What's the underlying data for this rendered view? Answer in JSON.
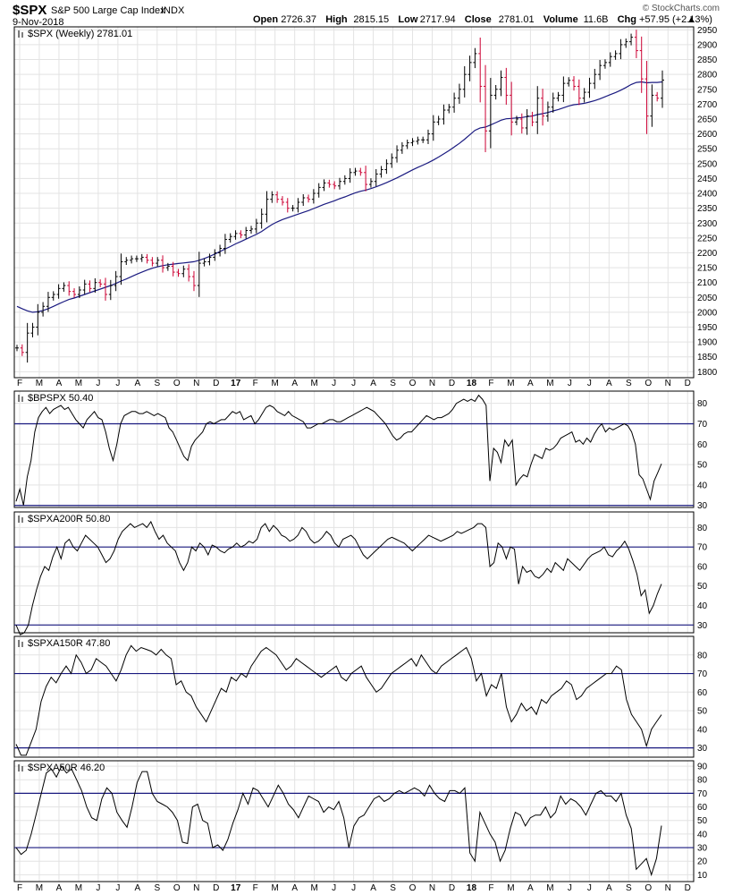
{
  "header": {
    "symbol": "$SPX",
    "name": "S&P 500 Large Cap Index",
    "exchange": "INDX",
    "date": "9-Nov-2018",
    "brand": "© StockCharts.com",
    "quote": [
      {
        "label": "Open",
        "value": "2726.37"
      },
      {
        "label": "High",
        "value": "2815.15"
      },
      {
        "label": "Low",
        "value": "2717.94"
      },
      {
        "label": "Close",
        "value": "2781.01"
      },
      {
        "label": "Volume",
        "value": "11.6B"
      },
      {
        "label": "Chg",
        "value": "+57.95 (+2.13%)"
      }
    ],
    "up_arrow": "▲"
  },
  "colors": {
    "price_up": "#000000",
    "price_down": "#cc0033",
    "ma_line": "#1a1a80",
    "ref_line": "#1a1a80",
    "grid": "#e3e3e3",
    "indicator_line": "#000000"
  },
  "chart_data": {
    "type": "line",
    "x_axis": {
      "labels": [
        "F",
        "M",
        "A",
        "M",
        "J",
        "J",
        "A",
        "S",
        "O",
        "N",
        "D",
        "17",
        "F",
        "M",
        "A",
        "M",
        "J",
        "J",
        "A",
        "S",
        "O",
        "N",
        "D",
        "18",
        "F",
        "M",
        "A",
        "M",
        "J",
        "J",
        "A",
        "S",
        "O",
        "N",
        "D"
      ],
      "year_labels": [
        "17",
        "18"
      ]
    },
    "panels": [
      {
        "id": "price",
        "label": "$SPX (Weekly) 2781.01",
        "ylim": [
          1780,
          2960
        ],
        "yticks": [
          1800,
          1850,
          1900,
          1950,
          2000,
          2050,
          2100,
          2150,
          2200,
          2250,
          2300,
          2350,
          2400,
          2450,
          2500,
          2550,
          2600,
          2650,
          2700,
          2750,
          2800,
          2850,
          2900,
          2950
        ],
        "close": [
          1880,
          1865,
          1930,
          1950,
          2000,
          2020,
          2050,
          2060,
          2080,
          2090,
          2070,
          2060,
          2075,
          2095,
          2080,
          2100,
          2095,
          2060,
          2090,
          2120,
          2170,
          2175,
          2180,
          2180,
          2185,
          2175,
          2165,
          2175,
          2150,
          2155,
          2135,
          2130,
          2145,
          2120,
          2090,
          2165,
          2170,
          2185,
          2200,
          2215,
          2245,
          2255,
          2265,
          2260,
          2275,
          2280,
          2300,
          2330,
          2380,
          2395,
          2380,
          2370,
          2350,
          2350,
          2370,
          2385,
          2380,
          2400,
          2420,
          2435,
          2430,
          2425,
          2440,
          2450,
          2470,
          2475,
          2470,
          2430,
          2440,
          2465,
          2480,
          2500,
          2520,
          2545,
          2560,
          2570,
          2575,
          2580,
          2580,
          2600,
          2640,
          2650,
          2680,
          2690,
          2720,
          2750,
          2800,
          2840,
          2870,
          2760,
          2610,
          2730,
          2750,
          2790,
          2730,
          2640,
          2650,
          2620,
          2660,
          2640,
          2720,
          2660,
          2690,
          2720,
          2730,
          2770,
          2780,
          2760,
          2720,
          2740,
          2770,
          2800,
          2830,
          2840,
          2860,
          2870,
          2900,
          2910,
          2925,
          2880,
          2785,
          2660,
          2730,
          2720,
          2781
        ],
        "ma_40week": [
          2020,
          2012,
          2005,
          2000,
          2002,
          2006,
          2012,
          2020,
          2028,
          2036,
          2043,
          2048,
          2054,
          2060,
          2066,
          2072,
          2078,
          2084,
          2090,
          2097,
          2105,
          2112,
          2120,
          2128,
          2135,
          2142,
          2148,
          2153,
          2157,
          2160,
          2162,
          2164,
          2166,
          2168,
          2170,
          2175,
          2181,
          2188,
          2196,
          2204,
          2213,
          2221,
          2230,
          2238,
          2246,
          2254,
          2262,
          2272,
          2284,
          2295,
          2304,
          2312,
          2318,
          2324,
          2330,
          2336,
          2342,
          2349,
          2356,
          2363,
          2369,
          2375,
          2382,
          2388,
          2395,
          2402,
          2407,
          2411,
          2416,
          2422,
          2429,
          2436,
          2444,
          2452,
          2461,
          2470,
          2479,
          2487,
          2495,
          2503,
          2512,
          2522,
          2533,
          2544,
          2556,
          2568,
          2582,
          2597,
          2612,
          2620,
          2623,
          2630,
          2638,
          2646,
          2651,
          2652,
          2654,
          2655,
          2658,
          2660,
          2665,
          2668,
          2672,
          2677,
          2682,
          2688,
          2694,
          2698,
          2700,
          2703,
          2707,
          2712,
          2718,
          2725,
          2732,
          2739,
          2747,
          2756,
          2766,
          2773,
          2775,
          2772,
          2773,
          2773,
          2775
        ]
      },
      {
        "id": "bpspx",
        "label": "$BPSPX 50.40",
        "ylim": [
          29,
          86
        ],
        "yticks": [
          30,
          40,
          50,
          60,
          70,
          80
        ],
        "ref_lines": [
          30,
          70
        ],
        "values": [
          32,
          38,
          30,
          44,
          52,
          66,
          73,
          76,
          78,
          75,
          77,
          78,
          79,
          77,
          78,
          75,
          72,
          70,
          68,
          72,
          74,
          76,
          73,
          72,
          66,
          58,
          52,
          60,
          70,
          74,
          75,
          76,
          76,
          75,
          75,
          76,
          75,
          74,
          75,
          74,
          73,
          68,
          66,
          62,
          58,
          54,
          52,
          59,
          62,
          64,
          66,
          70,
          71,
          70,
          71,
          72,
          72,
          74,
          76,
          75,
          76,
          72,
          73,
          74,
          70,
          72,
          75,
          78,
          79,
          78,
          76,
          75,
          74,
          76,
          74,
          73,
          72,
          71,
          68,
          68,
          69,
          70,
          70,
          71,
          72,
          72,
          71,
          71,
          72,
          73,
          74,
          75,
          76,
          77,
          78,
          77,
          76,
          74,
          72,
          70,
          67,
          64,
          62,
          63,
          65,
          66,
          66,
          68,
          70,
          72,
          74,
          73,
          72,
          73,
          73,
          74,
          75,
          77,
          80,
          81,
          82,
          81,
          82,
          81,
          84,
          82,
          79,
          42,
          58,
          56,
          51,
          62,
          59,
          62,
          40,
          43,
          45,
          44,
          50,
          55,
          54,
          53,
          58,
          57,
          58,
          60,
          63,
          64,
          65,
          66,
          61,
          62,
          60,
          63,
          61,
          65,
          68,
          70,
          66,
          68,
          67,
          68,
          69,
          70,
          69,
          66,
          60,
          45,
          43,
          38,
          33,
          42,
          46,
          50.4
        ]
      },
      {
        "id": "spxa200r",
        "label": "$SPXA200R 50.80",
        "ylim": [
          26,
          88
        ],
        "yticks": [
          30,
          40,
          50,
          60,
          70,
          80
        ],
        "ref_lines": [
          30,
          70
        ],
        "values": [
          30,
          25,
          26,
          30,
          40,
          48,
          55,
          60,
          58,
          65,
          70,
          64,
          72,
          74,
          70,
          68,
          72,
          76,
          74,
          72,
          70,
          66,
          62,
          64,
          68,
          74,
          78,
          80,
          82,
          80,
          81,
          82,
          80,
          83,
          78,
          74,
          76,
          72,
          70,
          68,
          62,
          58,
          62,
          70,
          68,
          72,
          70,
          66,
          71,
          70,
          68,
          67,
          69,
          70,
          72,
          70,
          71,
          73,
          72,
          74,
          80,
          82,
          78,
          81,
          79,
          76,
          75,
          73,
          74,
          76,
          80,
          78,
          74,
          72,
          73,
          75,
          78,
          76,
          72,
          70,
          74,
          75,
          76,
          74,
          70,
          66,
          64,
          66,
          68,
          70,
          72,
          74,
          75,
          74,
          73,
          72,
          70,
          68,
          70,
          72,
          74,
          76,
          75,
          74,
          73,
          74,
          75,
          76,
          78,
          77,
          78,
          79,
          80,
          82,
          82,
          80,
          60,
          62,
          72,
          70,
          64,
          70,
          69,
          51,
          60,
          57,
          58,
          55,
          54,
          56,
          59,
          57,
          62,
          60,
          58,
          64,
          62,
          60,
          58,
          61,
          64,
          66,
          67,
          68,
          70,
          66,
          65,
          68,
          70,
          73,
          69,
          63,
          56,
          45,
          48,
          36,
          40,
          46,
          51
        ],
        "_note": ""
      },
      {
        "id": "spxa150r",
        "label": "$SPXA150R 47.80",
        "ylim": [
          25,
          90
        ],
        "yticks": [
          30,
          40,
          50,
          60,
          70,
          80
        ],
        "ref_lines": [
          30,
          70
        ],
        "values": [
          32,
          26,
          26,
          33,
          40,
          55,
          63,
          68,
          65,
          70,
          74,
          70,
          80,
          76,
          70,
          72,
          78,
          76,
          74,
          70,
          66,
          72,
          80,
          85,
          82,
          84,
          83,
          82,
          80,
          83,
          80,
          78,
          64,
          66,
          60,
          58,
          52,
          48,
          44,
          50,
          56,
          62,
          60,
          68,
          66,
          70,
          68,
          74,
          78,
          82,
          84,
          82,
          80,
          76,
          72,
          74,
          78,
          76,
          74,
          72,
          70,
          68,
          70,
          72,
          74,
          68,
          66,
          70,
          72,
          74,
          68,
          64,
          60,
          62,
          66,
          70,
          72,
          74,
          76,
          78,
          74,
          80,
          76,
          72,
          70,
          74,
          76,
          78,
          80,
          82,
          84,
          78,
          66,
          70,
          58,
          64,
          62,
          70,
          52,
          44,
          48,
          54,
          50,
          52,
          48,
          56,
          54,
          58,
          60,
          62,
          66,
          64,
          56,
          58,
          62,
          64,
          66,
          68,
          70,
          70,
          74,
          72,
          56,
          48,
          44,
          40,
          31,
          40,
          44,
          47.8
        ]
      },
      {
        "id": "spxa50r",
        "label": "$SPXA50R 46.20",
        "ylim": [
          5,
          94
        ],
        "yticks": [
          10,
          20,
          30,
          40,
          50,
          60,
          70,
          80,
          90
        ],
        "ref_lines": [
          30,
          70
        ],
        "values": [
          30,
          25,
          28,
          40,
          55,
          70,
          85,
          88,
          82,
          90,
          85,
          88,
          80,
          72,
          60,
          52,
          50,
          66,
          74,
          70,
          56,
          50,
          45,
          60,
          78,
          86,
          86,
          70,
          64,
          62,
          60,
          56,
          50,
          34,
          33,
          60,
          62,
          50,
          48,
          30,
          32,
          28,
          36,
          48,
          58,
          70,
          62,
          74,
          72,
          66,
          60,
          68,
          76,
          70,
          62,
          58,
          52,
          60,
          68,
          66,
          64,
          56,
          60,
          58,
          64,
          52,
          30,
          46,
          52,
          54,
          60,
          66,
          68,
          64,
          66,
          70,
          72,
          70,
          72,
          74,
          72,
          68,
          76,
          70,
          66,
          64,
          72,
          72,
          70,
          74,
          26,
          20,
          56,
          48,
          40,
          34,
          20,
          28,
          44,
          56,
          54,
          46,
          52,
          54,
          54,
          60,
          52,
          56,
          68,
          62,
          66,
          64,
          60,
          54,
          62,
          70,
          72,
          68,
          68,
          64,
          70,
          54,
          44,
          14,
          18,
          22,
          10,
          22,
          46.2
        ]
      }
    ]
  }
}
